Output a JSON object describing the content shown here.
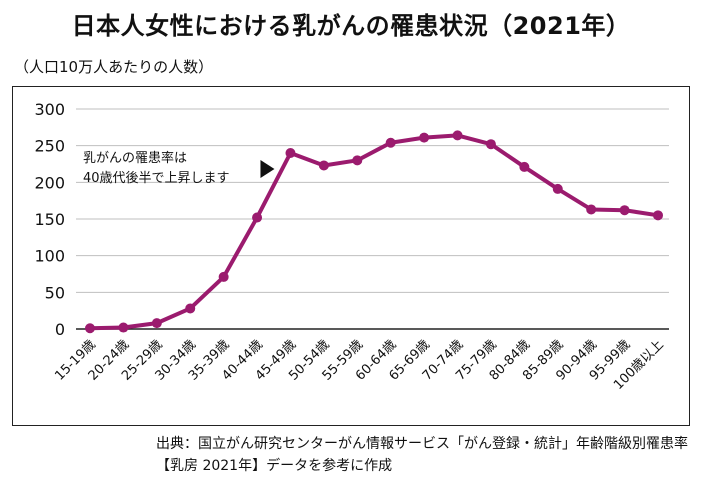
{
  "title": "日本人女性における乳がんの罹患状況（2021年）",
  "unit_note": "（人口10万人あたりの人数）",
  "source": {
    "line1": "出典：国立がん研究センターがん情報サービス「がん登録・統計」年齢階級別罹患率",
    "line2": "【乳房 2021年】データを参考に作成"
  },
  "colors": {
    "line": "#9b1b6e",
    "grid": "#bfbfbf",
    "axis": "#222222"
  },
  "chart_data": {
    "type": "line",
    "title": "日本人女性における乳がんの罹患状況（2021年）",
    "ylabel": "（人口10万人あたりの人数）",
    "xlabel": "",
    "ylim": [
      0,
      300
    ],
    "yticks": [
      0,
      50,
      100,
      150,
      200,
      250,
      300
    ],
    "grid": true,
    "categories": [
      "15-19歳",
      "20-24歳",
      "25-29歳",
      "30-34歳",
      "35-39歳",
      "40-44歳",
      "45-49歳",
      "50-54歳",
      "55-59歳",
      "60-64歳",
      "65-69歳",
      "70-74歳",
      "75-79歳",
      "80-84歳",
      "85-89歳",
      "90-94歳",
      "95-99歳",
      "100歳以上"
    ],
    "values": [
      1,
      2,
      8,
      28,
      71,
      152,
      240,
      223,
      230,
      254,
      261,
      264,
      252,
      221,
      191,
      163,
      162,
      155
    ],
    "annotation": {
      "line1": "乳がんの罹患率は",
      "line2": "40歳代後半で上昇します",
      "points_to": "45-49歳"
    }
  }
}
